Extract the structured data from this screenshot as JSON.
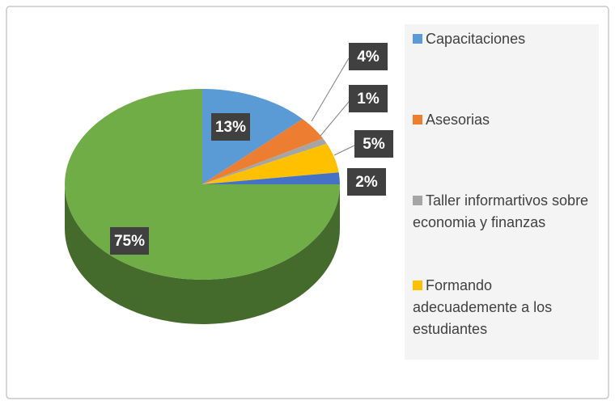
{
  "chart_data": {
    "type": "pie",
    "categories": [
      "Capacitaciones",
      "Asesorias",
      "Taller informartivos sobre economia y finanzas",
      "Formando adecuademente a los estudiantes",
      null,
      null
    ],
    "values": [
      13,
      4,
      1,
      5,
      2,
      75
    ],
    "value_labels": [
      "13%",
      "4%",
      "1%",
      "5%",
      "2%",
      "75%"
    ],
    "colors": [
      "#5b9bd5",
      "#ed7d31",
      "#a5a5a5",
      "#ffc000",
      "#4472c4",
      "#70ad47"
    ]
  }
}
